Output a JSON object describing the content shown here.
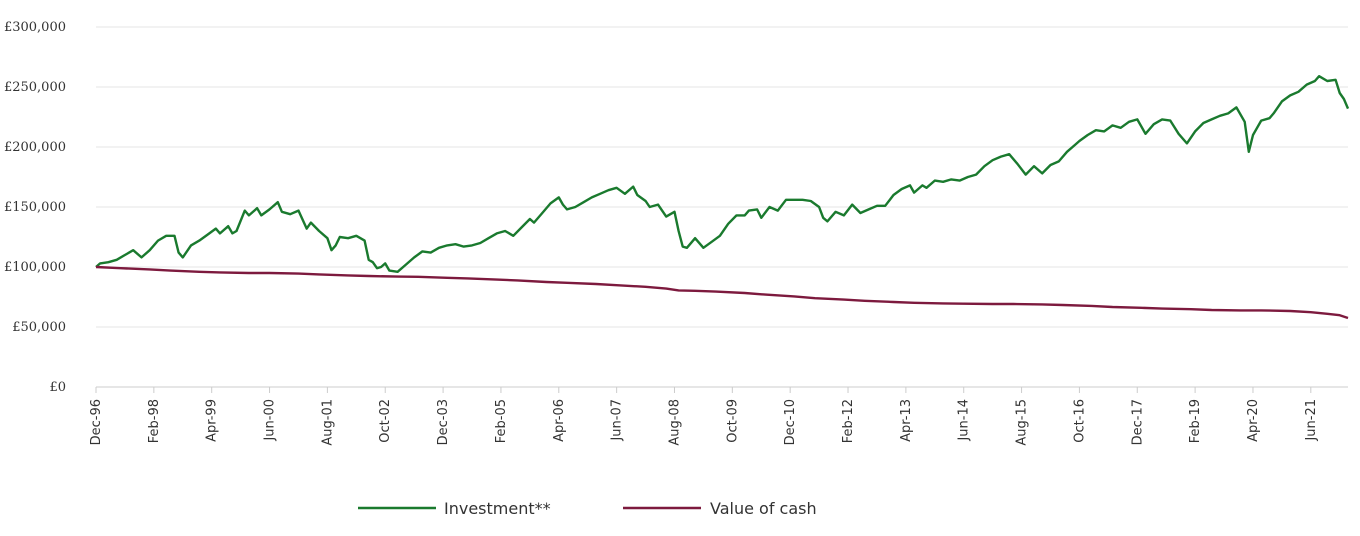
{
  "chart_data": {
    "type": "line",
    "title": "",
    "xlabel": "",
    "ylabel": "",
    "ylim": [
      0,
      300000
    ],
    "y_ticks": [
      {
        "value": 0,
        "label": "£0"
      },
      {
        "value": 50000,
        "label": "£50,000"
      },
      {
        "value": 100000,
        "label": "£100,000"
      },
      {
        "value": 150000,
        "label": "£150,000"
      },
      {
        "value": 200000,
        "label": "£200,000"
      },
      {
        "value": 250000,
        "label": "£250,000"
      },
      {
        "value": 300000,
        "label": "£300,000"
      }
    ],
    "x_range": [
      "1996-12",
      "2022-03"
    ],
    "x_ticks": [
      "Dec-96",
      "Feb-98",
      "Apr-99",
      "Jun-00",
      "Aug-01",
      "Oct-02",
      "Dec-03",
      "Feb-05",
      "Apr-06",
      "Jun-07",
      "Aug-08",
      "Oct-09",
      "Dec-10",
      "Feb-12",
      "Apr-13",
      "Jun-14",
      "Aug-15",
      "Oct-16",
      "Dec-17",
      "Feb-19",
      "Apr-20",
      "Jun-21"
    ],
    "grid": "horizontal",
    "legend_position": "bottom-center",
    "series": [
      {
        "name": "Investment**",
        "color": "#1a7a2e",
        "points": [
          [
            "1996-12",
            100000
          ],
          [
            "1997-01",
            103000
          ],
          [
            "1997-03",
            104000
          ],
          [
            "1997-05",
            106000
          ],
          [
            "1997-07",
            110000
          ],
          [
            "1997-09",
            114000
          ],
          [
            "1997-11",
            108000
          ],
          [
            "1998-01",
            114000
          ],
          [
            "1998-03",
            122000
          ],
          [
            "1998-05",
            126000
          ],
          [
            "1998-07",
            126000
          ],
          [
            "1998-08",
            112000
          ],
          [
            "1998-09",
            108000
          ],
          [
            "1998-11",
            118000
          ],
          [
            "1999-01",
            122000
          ],
          [
            "1999-03",
            127000
          ],
          [
            "1999-05",
            132000
          ],
          [
            "1999-06",
            128000
          ],
          [
            "1999-08",
            134000
          ],
          [
            "1999-09",
            128000
          ],
          [
            "1999-10",
            130000
          ],
          [
            "1999-12",
            147000
          ],
          [
            "2000-01",
            143000
          ],
          [
            "2000-03",
            149000
          ],
          [
            "2000-04",
            143000
          ],
          [
            "2000-06",
            148000
          ],
          [
            "2000-08",
            154000
          ],
          [
            "2000-09",
            146000
          ],
          [
            "2000-11",
            144000
          ],
          [
            "2001-01",
            147000
          ],
          [
            "2001-03",
            132000
          ],
          [
            "2001-04",
            137000
          ],
          [
            "2001-06",
            130000
          ],
          [
            "2001-08",
            124000
          ],
          [
            "2001-09",
            114000
          ],
          [
            "2001-10",
            118000
          ],
          [
            "2001-11",
            125000
          ],
          [
            "2002-01",
            124000
          ],
          [
            "2002-03",
            126000
          ],
          [
            "2002-05",
            122000
          ],
          [
            "2002-06",
            106000
          ],
          [
            "2002-07",
            104000
          ],
          [
            "2002-08",
            99000
          ],
          [
            "2002-09",
            100000
          ],
          [
            "2002-10",
            103000
          ],
          [
            "2002-11",
            97000
          ],
          [
            "2003-01",
            96000
          ],
          [
            "2003-03",
            102000
          ],
          [
            "2003-05",
            108000
          ],
          [
            "2003-07",
            113000
          ],
          [
            "2003-09",
            112000
          ],
          [
            "2003-11",
            116000
          ],
          [
            "2004-01",
            118000
          ],
          [
            "2004-03",
            119000
          ],
          [
            "2004-05",
            117000
          ],
          [
            "2004-07",
            118000
          ],
          [
            "2004-09",
            120000
          ],
          [
            "2004-11",
            124000
          ],
          [
            "2005-01",
            128000
          ],
          [
            "2005-03",
            130000
          ],
          [
            "2005-05",
            126000
          ],
          [
            "2005-07",
            133000
          ],
          [
            "2005-09",
            140000
          ],
          [
            "2005-10",
            137000
          ],
          [
            "2005-12",
            145000
          ],
          [
            "2006-02",
            153000
          ],
          [
            "2006-04",
            158000
          ],
          [
            "2006-05",
            152000
          ],
          [
            "2006-06",
            148000
          ],
          [
            "2006-08",
            150000
          ],
          [
            "2006-10",
            154000
          ],
          [
            "2006-12",
            158000
          ],
          [
            "2007-02",
            161000
          ],
          [
            "2007-04",
            164000
          ],
          [
            "2007-06",
            166000
          ],
          [
            "2007-08",
            161000
          ],
          [
            "2007-10",
            167000
          ],
          [
            "2007-11",
            160000
          ],
          [
            "2008-01",
            155000
          ],
          [
            "2008-02",
            150000
          ],
          [
            "2008-04",
            152000
          ],
          [
            "2008-05",
            147000
          ],
          [
            "2008-06",
            142000
          ],
          [
            "2008-08",
            146000
          ],
          [
            "2008-09",
            130000
          ],
          [
            "2008-10",
            117000
          ],
          [
            "2008-11",
            116000
          ],
          [
            "2009-01",
            124000
          ],
          [
            "2009-03",
            116000
          ],
          [
            "2009-05",
            121000
          ],
          [
            "2009-07",
            126000
          ],
          [
            "2009-09",
            136000
          ],
          [
            "2009-11",
            143000
          ],
          [
            "2010-01",
            143000
          ],
          [
            "2010-02",
            147000
          ],
          [
            "2010-04",
            148000
          ],
          [
            "2010-05",
            141000
          ],
          [
            "2010-07",
            150000
          ],
          [
            "2010-09",
            147000
          ],
          [
            "2010-11",
            156000
          ],
          [
            "2011-01",
            156000
          ],
          [
            "2011-03",
            156000
          ],
          [
            "2011-05",
            155000
          ],
          [
            "2011-07",
            150000
          ],
          [
            "2011-08",
            141000
          ],
          [
            "2011-09",
            138000
          ],
          [
            "2011-11",
            146000
          ],
          [
            "2012-01",
            143000
          ],
          [
            "2012-03",
            152000
          ],
          [
            "2012-05",
            145000
          ],
          [
            "2012-07",
            148000
          ],
          [
            "2012-09",
            151000
          ],
          [
            "2012-11",
            151000
          ],
          [
            "2013-01",
            160000
          ],
          [
            "2013-03",
            165000
          ],
          [
            "2013-05",
            168000
          ],
          [
            "2013-06",
            162000
          ],
          [
            "2013-08",
            168000
          ],
          [
            "2013-09",
            166000
          ],
          [
            "2013-11",
            172000
          ],
          [
            "2014-01",
            171000
          ],
          [
            "2014-03",
            173000
          ],
          [
            "2014-05",
            172000
          ],
          [
            "2014-07",
            175000
          ],
          [
            "2014-09",
            177000
          ],
          [
            "2014-11",
            184000
          ],
          [
            "2015-01",
            189000
          ],
          [
            "2015-03",
            192000
          ],
          [
            "2015-05",
            194000
          ],
          [
            "2015-07",
            186000
          ],
          [
            "2015-09",
            177000
          ],
          [
            "2015-11",
            184000
          ],
          [
            "2016-01",
            178000
          ],
          [
            "2016-03",
            185000
          ],
          [
            "2016-05",
            188000
          ],
          [
            "2016-07",
            196000
          ],
          [
            "2016-09",
            202000
          ],
          [
            "2016-10",
            205000
          ],
          [
            "2016-12",
            210000
          ],
          [
            "2017-02",
            214000
          ],
          [
            "2017-04",
            213000
          ],
          [
            "2017-06",
            218000
          ],
          [
            "2017-08",
            216000
          ],
          [
            "2017-10",
            221000
          ],
          [
            "2017-12",
            223000
          ],
          [
            "2018-02",
            211000
          ],
          [
            "2018-04",
            219000
          ],
          [
            "2018-06",
            223000
          ],
          [
            "2018-08",
            222000
          ],
          [
            "2018-10",
            211000
          ],
          [
            "2018-12",
            203000
          ],
          [
            "2019-02",
            213000
          ],
          [
            "2019-04",
            220000
          ],
          [
            "2019-06",
            223000
          ],
          [
            "2019-08",
            226000
          ],
          [
            "2019-10",
            228000
          ],
          [
            "2019-12",
            233000
          ],
          [
            "2020-02",
            221000
          ],
          [
            "2020-03",
            196000
          ],
          [
            "2020-04",
            210000
          ],
          [
            "2020-06",
            222000
          ],
          [
            "2020-08",
            224000
          ],
          [
            "2020-09",
            228000
          ],
          [
            "2020-11",
            238000
          ],
          [
            "2021-01",
            243000
          ],
          [
            "2021-03",
            246000
          ],
          [
            "2021-05",
            252000
          ],
          [
            "2021-07",
            255000
          ],
          [
            "2021-08",
            259000
          ],
          [
            "2021-10",
            255000
          ],
          [
            "2021-12",
            256000
          ],
          [
            "2022-01",
            245000
          ],
          [
            "2022-02",
            240000
          ],
          [
            "2022-03",
            232000
          ]
        ]
      },
      {
        "name": "Value of cash",
        "color": "#7d1a3e",
        "points": [
          [
            "1996-12",
            100000
          ],
          [
            "1997-06",
            99000
          ],
          [
            "1998-01",
            98000
          ],
          [
            "1998-06",
            97000
          ],
          [
            "1999-01",
            96000
          ],
          [
            "1999-06",
            95500
          ],
          [
            "2000-01",
            95000
          ],
          [
            "2000-06",
            95000
          ],
          [
            "2001-01",
            94500
          ],
          [
            "2001-06",
            93800
          ],
          [
            "2002-01",
            93000
          ],
          [
            "2002-06",
            92500
          ],
          [
            "2003-01",
            92000
          ],
          [
            "2003-06",
            91800
          ],
          [
            "2004-01",
            91000
          ],
          [
            "2004-06",
            90500
          ],
          [
            "2005-01",
            89500
          ],
          [
            "2005-06",
            88800
          ],
          [
            "2006-01",
            87500
          ],
          [
            "2006-06",
            86800
          ],
          [
            "2007-01",
            85800
          ],
          [
            "2007-06",
            84800
          ],
          [
            "2008-01",
            83500
          ],
          [
            "2008-06",
            82000
          ],
          [
            "2008-09",
            80500
          ],
          [
            "2009-01",
            80200
          ],
          [
            "2009-06",
            79500
          ],
          [
            "2010-01",
            78300
          ],
          [
            "2010-06",
            77000
          ],
          [
            "2011-01",
            75500
          ],
          [
            "2011-06",
            74000
          ],
          [
            "2012-01",
            72800
          ],
          [
            "2012-06",
            71800
          ],
          [
            "2013-01",
            70800
          ],
          [
            "2013-06",
            70200
          ],
          [
            "2014-01",
            69700
          ],
          [
            "2014-06",
            69400
          ],
          [
            "2015-01",
            69200
          ],
          [
            "2015-06",
            69200
          ],
          [
            "2016-01",
            68800
          ],
          [
            "2016-06",
            68300
          ],
          [
            "2017-01",
            67600
          ],
          [
            "2017-06",
            66700
          ],
          [
            "2018-01",
            66000
          ],
          [
            "2018-06",
            65300
          ],
          [
            "2019-01",
            64800
          ],
          [
            "2019-06",
            64200
          ],
          [
            "2020-01",
            63800
          ],
          [
            "2020-06",
            63800
          ],
          [
            "2021-01",
            63300
          ],
          [
            "2021-06",
            62300
          ],
          [
            "2021-10",
            61000
          ],
          [
            "2022-01",
            59800
          ],
          [
            "2022-03",
            57500
          ]
        ]
      }
    ]
  }
}
